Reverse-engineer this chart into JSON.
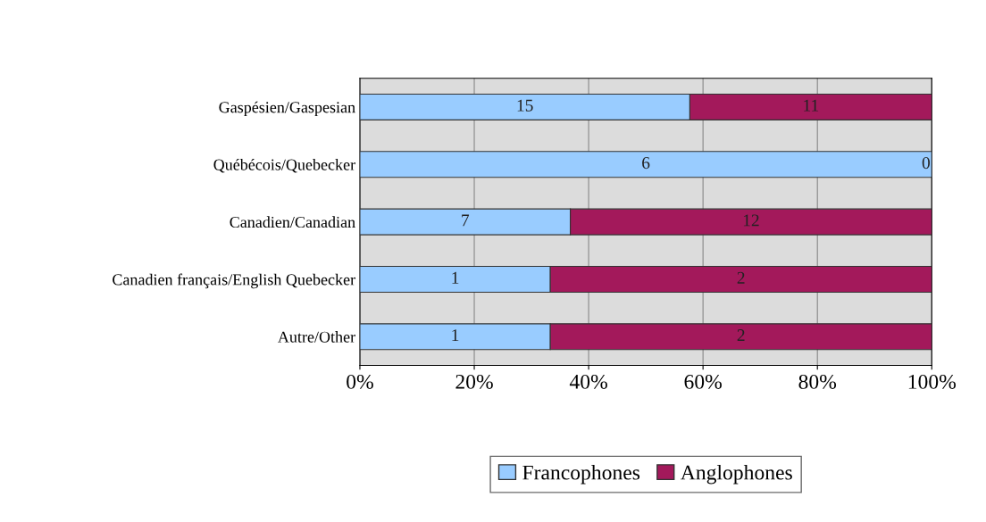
{
  "chart_data": {
    "type": "bar",
    "orientation": "horizontal",
    "stacked": true,
    "categories": [
      "Gaspésien/Gaspesian",
      "Québécois/Quebecker",
      "Canadien/Canadian",
      "Canadien français/English Quebecker",
      "Autre/Other"
    ],
    "series": [
      {
        "name": "Francophones",
        "color": "#99ccff",
        "values": [
          57.7,
          100,
          36.8,
          33.3,
          33.3
        ]
      },
      {
        "name": "Anglophones",
        "color": "#a3195b",
        "values": [
          42.3,
          0,
          63.2,
          66.7,
          66.7
        ]
      }
    ],
    "annotations": [
      "15",
      "11",
      "6",
      "0",
      "7",
      "12",
      "1",
      "2",
      "1",
      "2"
    ],
    "xlim": [
      0,
      100
    ],
    "xticks": [
      {
        "value": 0,
        "label": "0%"
      },
      {
        "value": 20,
        "label": "20%"
      },
      {
        "value": 40,
        "label": "40%"
      },
      {
        "value": 60,
        "label": "60%"
      },
      {
        "value": 80,
        "label": "80%"
      },
      {
        "value": 100,
        "label": "100%"
      }
    ],
    "grid": true,
    "legend": "bottom"
  }
}
